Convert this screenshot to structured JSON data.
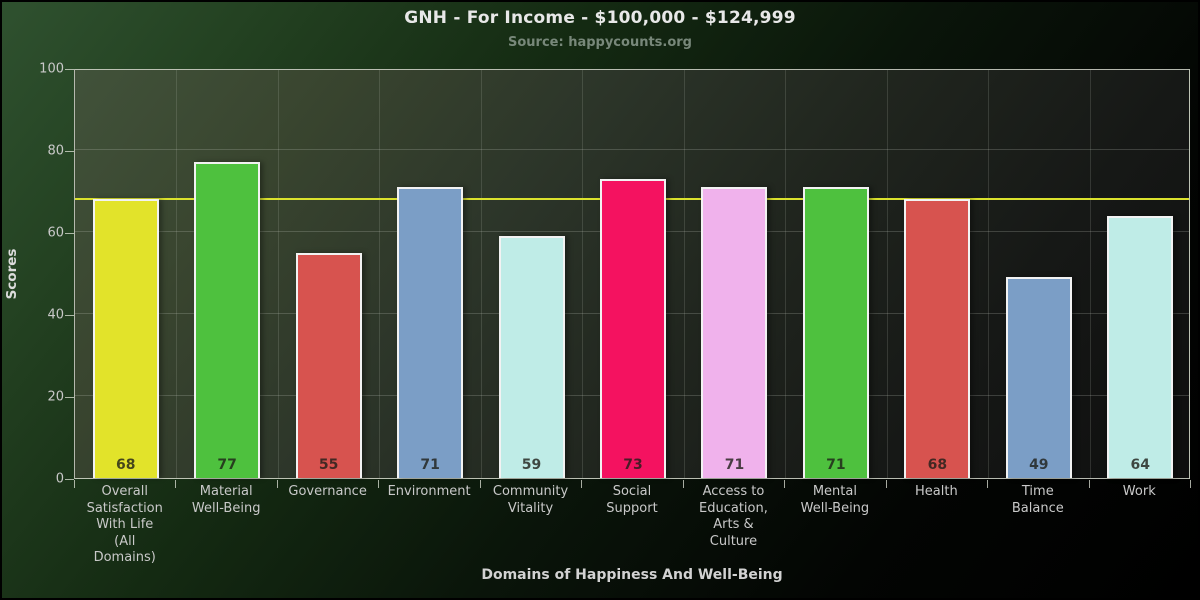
{
  "header": {
    "title": "GNH - For Income - $100,000 - $124,999",
    "subtitle": "Source: happycounts.org"
  },
  "chart_data": {
    "type": "bar",
    "title": "GNH - For Income - $100,000 - $124,999",
    "subtitle": "Source: happycounts.org",
    "xlabel": "Domains of Happiness And Well-Being",
    "ylabel": "Scores",
    "ylim": [
      0,
      100
    ],
    "yticks": [
      0,
      20,
      40,
      60,
      80,
      100
    ],
    "grid": true,
    "legend": "none",
    "reference_line": {
      "value": 68,
      "color": "#dbe22d"
    },
    "categories": [
      "Overall Satisfaction With Life (All Domains)",
      "Material Well-Being",
      "Governance",
      "Environment",
      "Community Vitality",
      "Social Support",
      "Access to Education, Arts & Culture",
      "Mental Well-Being",
      "Health",
      "Time Balance",
      "Work"
    ],
    "category_lines": [
      [
        "Overall",
        "Satisfaction",
        "With Life",
        "(All",
        "Domains)"
      ],
      [
        "Material",
        "Well-Being"
      ],
      [
        "Governance"
      ],
      [
        "Environment"
      ],
      [
        "Community",
        "Vitality"
      ],
      [
        "Social",
        "Support"
      ],
      [
        "Access to",
        "Education,",
        "Arts &",
        "Culture"
      ],
      [
        "Mental",
        "Well-Being"
      ],
      [
        "Health"
      ],
      [
        "Time",
        "Balance"
      ],
      [
        "Work"
      ]
    ],
    "values": [
      68,
      77,
      55,
      71,
      59,
      73,
      71,
      71,
      68,
      49,
      64
    ],
    "bar_colors": [
      "#e2e32a",
      "#4ec13e",
      "#d7534f",
      "#7b9ec6",
      "#bfece7",
      "#f41260",
      "#f0b2ec",
      "#4ec13e",
      "#d7534f",
      "#7b9ec6",
      "#bfece7"
    ]
  },
  "style": {
    "bar_border": "#f2f2f2",
    "value_label_color": "rgba(30,30,24,0.8)",
    "tick_label_color": "#c9c9c9",
    "grid_color": "rgba(205,210,200,0.22)",
    "accent_line_color": "#dbe22d"
  }
}
